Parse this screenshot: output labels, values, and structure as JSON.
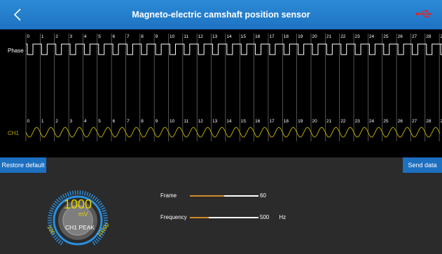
{
  "header": {
    "title": "Magneto-electric camshaft position sensor",
    "back_icon": "chevron-left-icon",
    "usb_icon": "usb-icon",
    "usb_color": "#e0262b"
  },
  "scope": {
    "channels": [
      "Phase",
      "CH1"
    ],
    "marker_labels": [
      "0",
      "1",
      "2",
      "3",
      "4",
      "5",
      "6",
      "7",
      "8",
      "9",
      "10",
      "11",
      "12",
      "13",
      "14",
      "15",
      "16",
      "17",
      "18",
      "19",
      "20",
      "21",
      "22",
      "23",
      "24",
      "25",
      "26",
      "27",
      "28",
      "29"
    ],
    "phase_color": "#ffffff",
    "ch1_color": "#b8a800"
  },
  "actions": {
    "restore_label": "Restore default",
    "send_label": "Send data"
  },
  "gauge": {
    "value": "1000",
    "unit": "mV",
    "label": "CH1 PEAK",
    "min_label": "100",
    "max_label": "10000",
    "accent": "#2a8fe0"
  },
  "sliders": {
    "frame": {
      "label": "Frame",
      "value": "60",
      "unit": "",
      "fill_fraction": 0.5
    },
    "frequency": {
      "label": "Frequency",
      "value": "500",
      "unit": "Hz",
      "fill_fraction": 0.28
    }
  }
}
